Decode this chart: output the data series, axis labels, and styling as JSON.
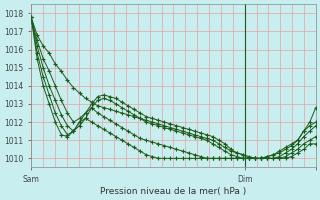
{
  "xlabel": "Pression niveau de la mer( hPa )",
  "bg_color": "#c8eef0",
  "grid_color_h": "#e8a0a0",
  "grid_color_v": "#e8a0a0",
  "line_color": "#1a5c1a",
  "marker": "+",
  "marker_size": 3,
  "marker_lw": 0.8,
  "xlim": [
    0,
    48
  ],
  "ylim": [
    1009.5,
    1018.5
  ],
  "yticks": [
    1010,
    1011,
    1012,
    1013,
    1014,
    1015,
    1016,
    1017,
    1018
  ],
  "xtick_positions": [
    0,
    36,
    48
  ],
  "xtick_labels": [
    "Sam",
    "Dim",
    ""
  ],
  "dim_line_x": 36,
  "n_xgrid": 24,
  "series": [
    [
      1017.8,
      1016.8,
      1016.2,
      1015.8,
      1015.2,
      1014.8,
      1014.3,
      1013.9,
      1013.6,
      1013.3,
      1013.1,
      1012.9,
      1012.8,
      1012.7,
      1012.6,
      1012.5,
      1012.4,
      1012.3,
      1012.2,
      1012.1,
      1012.0,
      1011.9,
      1011.8,
      1011.7,
      1011.6,
      1011.5,
      1011.4,
      1011.3,
      1011.2,
      1011.1,
      1011.0,
      1010.8,
      1010.6,
      1010.4,
      1010.3,
      1010.2,
      1010.1,
      1010.0,
      1010.0,
      1010.1,
      1010.2,
      1010.4,
      1010.6,
      1010.8,
      1011.0,
      1011.5,
      1012.0,
      1012.8
    ],
    [
      1017.8,
      1016.5,
      1015.5,
      1014.8,
      1014.0,
      1013.2,
      1012.5,
      1012.0,
      1012.2,
      1012.5,
      1013.0,
      1013.4,
      1013.5,
      1013.4,
      1013.3,
      1013.1,
      1012.9,
      1012.7,
      1012.5,
      1012.3,
      1012.2,
      1012.1,
      1012.0,
      1011.9,
      1011.8,
      1011.7,
      1011.6,
      1011.5,
      1011.4,
      1011.3,
      1011.2,
      1011.0,
      1010.8,
      1010.5,
      1010.3,
      1010.2,
      1010.0,
      1010.0,
      1010.0,
      1010.1,
      1010.2,
      1010.3,
      1010.5,
      1010.7,
      1011.0,
      1011.5,
      1011.8,
      1012.0
    ],
    [
      1017.8,
      1016.2,
      1015.0,
      1014.0,
      1013.2,
      1012.4,
      1011.8,
      1011.5,
      1011.8,
      1012.2,
      1012.8,
      1013.2,
      1013.3,
      1013.2,
      1013.0,
      1012.8,
      1012.6,
      1012.4,
      1012.2,
      1012.0,
      1011.9,
      1011.8,
      1011.7,
      1011.6,
      1011.5,
      1011.4,
      1011.3,
      1011.2,
      1011.1,
      1011.0,
      1010.8,
      1010.6,
      1010.4,
      1010.2,
      1010.1,
      1010.0,
      1010.0,
      1010.0,
      1010.0,
      1010.0,
      1010.0,
      1010.1,
      1010.3,
      1010.5,
      1010.8,
      1011.2,
      1011.5,
      1011.8
    ],
    [
      1017.8,
      1015.8,
      1014.5,
      1013.5,
      1012.5,
      1011.8,
      1011.3,
      1011.5,
      1012.0,
      1012.5,
      1012.8,
      1012.5,
      1012.3,
      1012.1,
      1011.9,
      1011.7,
      1011.5,
      1011.3,
      1011.1,
      1011.0,
      1010.9,
      1010.8,
      1010.7,
      1010.6,
      1010.5,
      1010.4,
      1010.3,
      1010.2,
      1010.1,
      1010.0,
      1010.0,
      1010.0,
      1010.0,
      1010.0,
      1010.0,
      1010.0,
      1010.0,
      1010.0,
      1010.0,
      1010.0,
      1010.0,
      1010.0,
      1010.1,
      1010.3,
      1010.5,
      1010.8,
      1011.0,
      1011.2
    ],
    [
      1017.8,
      1015.5,
      1014.0,
      1013.0,
      1012.0,
      1011.3,
      1011.2,
      1011.5,
      1012.0,
      1012.2,
      1012.0,
      1011.8,
      1011.6,
      1011.4,
      1011.2,
      1011.0,
      1010.8,
      1010.6,
      1010.4,
      1010.2,
      1010.1,
      1010.0,
      1010.0,
      1010.0,
      1010.0,
      1010.0,
      1010.0,
      1010.0,
      1010.0,
      1010.0,
      1010.0,
      1010.0,
      1010.0,
      1010.0,
      1010.0,
      1010.0,
      1010.0,
      1010.0,
      1010.0,
      1010.0,
      1010.0,
      1010.0,
      1010.0,
      1010.1,
      1010.3,
      1010.5,
      1010.8,
      1010.8
    ]
  ]
}
